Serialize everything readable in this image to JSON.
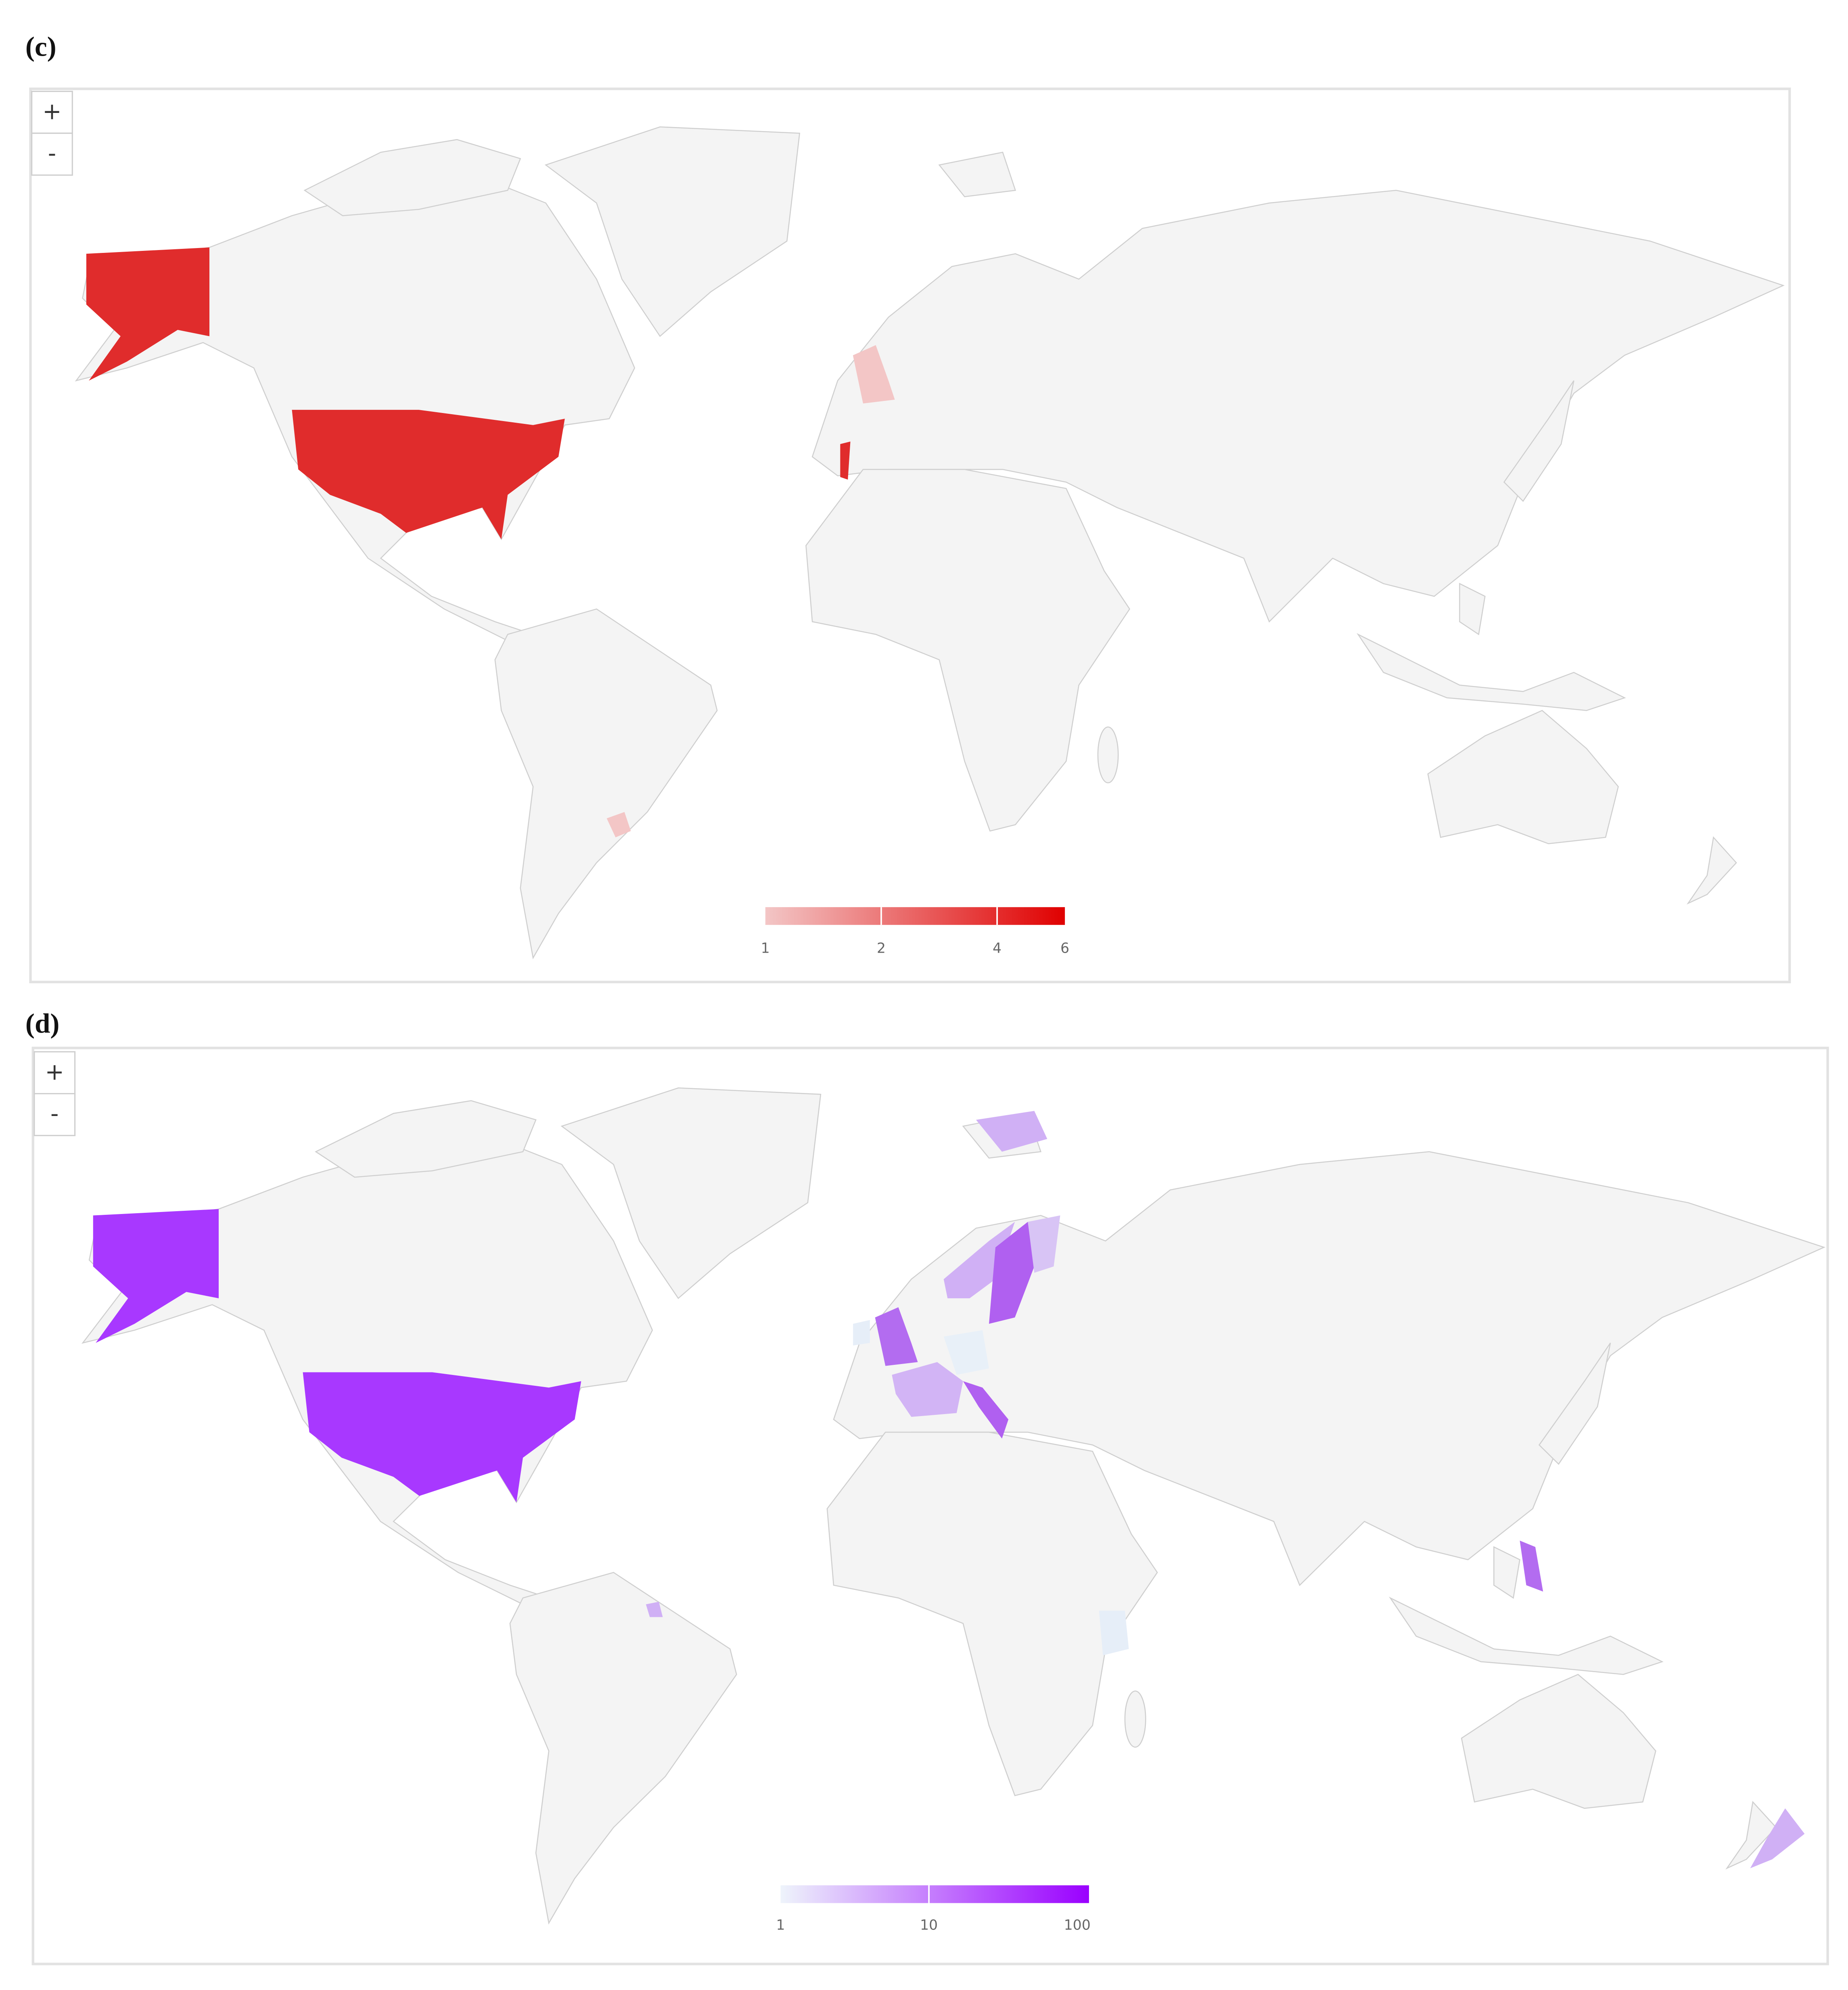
{
  "panels": [
    {
      "label": "(c)",
      "zoom": [
        "+",
        "-"
      ],
      "legend": {
        "ticks": [
          1,
          2,
          4,
          6
        ],
        "range": [
          1,
          6
        ],
        "log": true,
        "colors": [
          "#f3c6c6",
          "#e00000"
        ]
      }
    },
    {
      "label": "(d)",
      "zoom": [
        "+",
        "-"
      ],
      "legend": {
        "ticks": [
          1,
          10,
          100
        ],
        "range": [
          1,
          120
        ],
        "log": true,
        "colors": [
          "#eef4fb",
          "#9a00ff"
        ]
      }
    }
  ]
}
